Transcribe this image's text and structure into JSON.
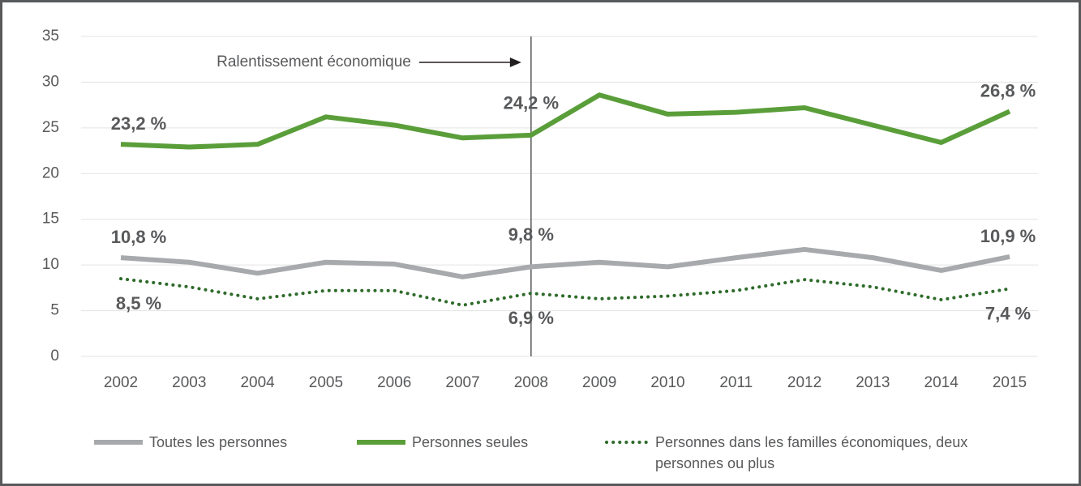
{
  "chart_data": {
    "type": "line",
    "categories": [
      "2002",
      "2003",
      "2004",
      "2005",
      "2006",
      "2007",
      "2008",
      "2009",
      "2010",
      "2011",
      "2012",
      "2013",
      "2014",
      "2015"
    ],
    "series": [
      {
        "name": "Toutes les personnes",
        "color": "#a7a9ac",
        "dash": false,
        "values": [
          10.8,
          10.3,
          9.1,
          10.3,
          10.1,
          8.7,
          9.8,
          10.3,
          9.8,
          10.8,
          11.7,
          10.8,
          9.4,
          10.9
        ],
        "value_labels": [
          "10,8 %",
          null,
          null,
          null,
          null,
          null,
          "9,8 %",
          null,
          null,
          null,
          null,
          null,
          null,
          "10,9 %"
        ]
      },
      {
        "name": "Personnes seules",
        "color": "#5a9e3a",
        "dash": false,
        "values": [
          23.2,
          22.9,
          23.2,
          26.2,
          25.3,
          23.9,
          24.2,
          28.6,
          26.5,
          26.7,
          27.2,
          25.3,
          23.4,
          26.8
        ],
        "value_labels": [
          "23,2 %",
          null,
          null,
          null,
          null,
          null,
          "24,2 %",
          null,
          null,
          null,
          null,
          null,
          null,
          "26,8 %"
        ]
      },
      {
        "name": "Personnes dans les familles économiques, deux personnes ou plus",
        "color": "#2e6b2a",
        "dash": true,
        "values": [
          8.5,
          7.6,
          6.3,
          7.2,
          7.2,
          5.6,
          6.9,
          6.3,
          6.6,
          7.2,
          8.4,
          7.6,
          6.2,
          7.4
        ],
        "value_labels": [
          "8,5 %",
          null,
          null,
          null,
          null,
          null,
          "6,9 %",
          null,
          null,
          null,
          null,
          null,
          null,
          "7,4 %"
        ]
      }
    ],
    "ylim": [
      0,
      35
    ],
    "yticks": [
      0,
      5,
      10,
      15,
      20,
      25,
      30,
      35
    ],
    "grid": true,
    "annotation": {
      "label": "Ralentissement économique",
      "at": "2008"
    },
    "legend": "bottom"
  }
}
